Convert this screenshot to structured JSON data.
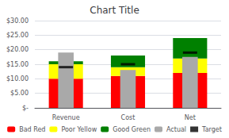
{
  "chart_data": {
    "type": "bullet",
    "title": "Chart Title",
    "categories": [
      "Revenue",
      "Cost",
      "Net"
    ],
    "series": [
      {
        "name": "Bad Red",
        "type": "band",
        "color": "#FF0000",
        "values": [
          10,
          11,
          12
        ]
      },
      {
        "name": "Poor Yellow",
        "type": "band",
        "color": "#FFFF00",
        "values": [
          5,
          3,
          5
        ]
      },
      {
        "name": "Good Green",
        "type": "band",
        "color": "#008000",
        "values": [
          1,
          4,
          7
        ]
      },
      {
        "name": "Actual",
        "type": "bar",
        "color": "#A9A9A9",
        "values": [
          19,
          13,
          17.5
        ]
      },
      {
        "name": "Target",
        "type": "target",
        "color": "#000000",
        "values": [
          14,
          15,
          19
        ]
      }
    ],
    "ylim": [
      0,
      30
    ],
    "yticks": [
      {
        "value": 0,
        "label": "$-"
      },
      {
        "value": 5,
        "label": "$5.00"
      },
      {
        "value": 10,
        "label": "$10.00"
      },
      {
        "value": 15,
        "label": "$15.00"
      },
      {
        "value": 20,
        "label": "$20.00"
      },
      {
        "value": 25,
        "label": "$25.00"
      },
      {
        "value": 30,
        "label": "$30.00"
      }
    ],
    "grid": true,
    "legend": "bottom"
  }
}
